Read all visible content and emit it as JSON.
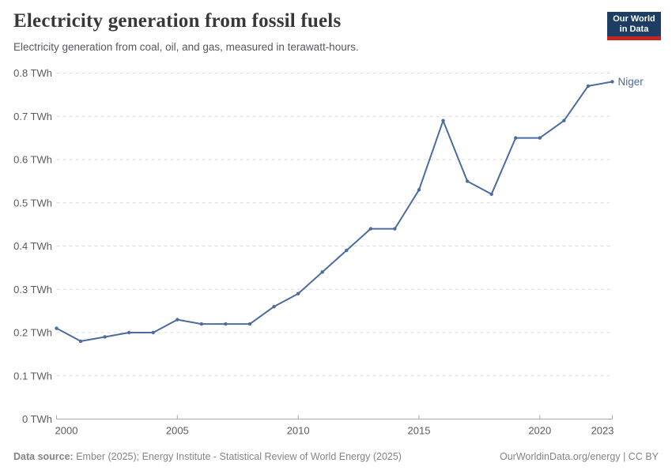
{
  "header": {
    "title": "Electricity generation from fossil fuels",
    "subtitle": "Electricity generation from coal, oil, and gas, measured in terawatt-hours.",
    "logo": {
      "line1": "Our World",
      "line2": "in Data",
      "bg_color": "#1d3d63",
      "accent_color": "#c32724"
    }
  },
  "chart_data": {
    "type": "line",
    "title": "Electricity generation from fossil fuels",
    "subtitle": "Electricity generation from coal, oil, and gas, measured in terawatt-hours.",
    "unit": "TWh",
    "x": [
      2000,
      2001,
      2002,
      2003,
      2004,
      2005,
      2006,
      2007,
      2008,
      2009,
      2010,
      2011,
      2012,
      2013,
      2014,
      2015,
      2016,
      2017,
      2018,
      2019,
      2020,
      2021,
      2022,
      2023
    ],
    "series": [
      {
        "name": "Niger",
        "color": "#4c6b9e",
        "values": [
          0.21,
          0.18,
          0.19,
          0.2,
          0.2,
          0.23,
          0.22,
          0.22,
          0.22,
          0.26,
          0.29,
          0.34,
          0.39,
          0.44,
          0.44,
          0.53,
          0.69,
          0.55,
          0.52,
          0.65,
          0.65,
          0.69,
          0.77,
          0.78
        ]
      }
    ],
    "ylim": [
      0,
      0.8
    ],
    "ytick_step": 0.1,
    "ytick_label_zero": "0 TWh",
    "xticks": [
      2000,
      2005,
      2010,
      2015,
      2020,
      2023
    ],
    "grid": "horizontal-dashed",
    "legend_position": "end-of-line-label",
    "axis_color": "#a9a9a9",
    "grid_color": "#d9d9d9",
    "tick_label_color": "#5b5b5b"
  },
  "footer": {
    "source_label": "Data source:",
    "source_text": "Ember (2025); Energy Institute - Statistical Review of World Energy (2025)",
    "credit": "OurWorldinData.org/energy | CC BY"
  }
}
